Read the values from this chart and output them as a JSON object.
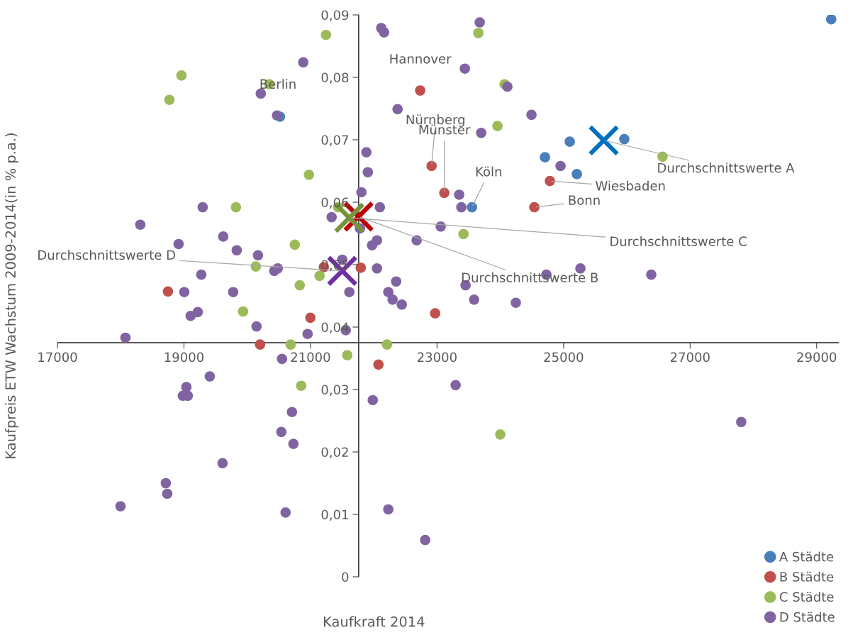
{
  "chart_data": {
    "type": "scatter",
    "xlabel": "Kaufkraft 2014",
    "ylabel": "Kaufpreis ETW Wachstum 2009-2014(in % p.a.)",
    "xlim": [
      17000,
      29350
    ],
    "ylim": [
      0,
      0.09
    ],
    "xticks": [
      17000,
      19000,
      21000,
      23000,
      25000,
      27000,
      29000
    ],
    "yticks": [
      {
        "value": 0,
        "label": "0"
      },
      {
        "value": 0.01,
        "label": "0,01"
      },
      {
        "value": 0.02,
        "label": "0,02"
      },
      {
        "value": 0.03,
        "label": "0,03"
      },
      {
        "value": 0.04,
        "label": "0,04"
      },
      {
        "value": 0.05,
        "label": "0,05"
      },
      {
        "value": 0.06,
        "label": "0,06"
      },
      {
        "value": 0.07,
        "label": "0,07"
      },
      {
        "value": 0.08,
        "label": "0,08"
      },
      {
        "value": 0.09,
        "label": "0,09"
      }
    ],
    "ref_lines": [
      {
        "axis": "x",
        "value": 21760,
        "color": "#404040"
      },
      {
        "axis": "y",
        "value": 0.0375,
        "color": "#404040"
      }
    ],
    "grid": false,
    "legend": "bottom right",
    "marker": "circle",
    "series": [
      {
        "name": "A Städte",
        "color": "#4a7ebb",
        "x": [
          29230,
          20517,
          25098,
          25960,
          24706,
          25210,
          23552
        ],
        "values": [
          0.0893,
          0.0737,
          0.0697,
          0.0701,
          0.0672,
          0.0645,
          0.0592
        ]
      },
      {
        "name": "B Städte",
        "color": "#c0504d",
        "x": [
          22734,
          22914,
          23115,
          24784,
          24538,
          21794,
          21211,
          18747,
          20998,
          22970,
          20203,
          22074
        ],
        "values": [
          0.0779,
          0.0658,
          0.0615,
          0.0634,
          0.0592,
          0.0495,
          0.0496,
          0.0457,
          0.0415,
          0.0422,
          0.0372,
          0.034
        ]
      },
      {
        "name": "C Städte",
        "color": "#9bbb59",
        "x": [
          21245,
          23653,
          18960,
          18770,
          20349,
          24067,
          23955,
          26565,
          20976,
          19822,
          21435,
          23418,
          20752,
          20136,
          21144,
          20830,
          19934,
          20685,
          22208,
          21581,
          20853,
          24000
        ],
        "values": [
          0.0868,
          0.0871,
          0.0803,
          0.0764,
          0.0789,
          0.0789,
          0.0722,
          0.0673,
          0.0644,
          0.0592,
          0.0592,
          0.0549,
          0.0532,
          0.0497,
          0.0482,
          0.0467,
          0.0425,
          0.0372,
          0.0372,
          0.0355,
          0.0306,
          0.0228
        ]
      },
      {
        "name": "D Städte",
        "color": "#8064a2",
        "x": [
          23675,
          22118,
          22163,
          20886,
          23440,
          20214,
          24112,
          20472,
          22376,
          24493,
          23698,
          21883,
          21906,
          21805,
          24952,
          23350,
          23384,
          22096,
          21782,
          21334,
          23058,
          21973,
          22051,
          22678,
          21502,
          22051,
          22354,
          21614,
          22230,
          23451,
          24728,
          25266,
          26386,
          22298,
          22443,
          23586,
          24246,
          21558,
          21984,
          23294,
          22230,
          22813,
          27808,
          19296,
          18310,
          18915,
          19621,
          19834,
          20170,
          20483,
          20427,
          19274,
          19005,
          19778,
          20147,
          19218,
          19106,
          20954,
          18075,
          20550,
          19408,
          19038,
          18982,
          19061,
          20707,
          20539,
          20730,
          19610,
          18714,
          18736,
          17997,
          20606
        ],
        "values": [
          0.0888,
          0.0879,
          0.0872,
          0.0824,
          0.0814,
          0.0774,
          0.0785,
          0.0739,
          0.0749,
          0.074,
          0.0711,
          0.068,
          0.0648,
          0.0616,
          0.0658,
          0.0612,
          0.0592,
          0.0592,
          0.0558,
          0.0576,
          0.0561,
          0.0531,
          0.0539,
          0.0539,
          0.0508,
          0.0494,
          0.0473,
          0.0456,
          0.0456,
          0.0467,
          0.0484,
          0.0494,
          0.0484,
          0.0444,
          0.0436,
          0.0444,
          0.0439,
          0.0395,
          0.0283,
          0.0307,
          0.0108,
          0.0059,
          0.0248,
          0.0592,
          0.0564,
          0.0533,
          0.0545,
          0.0523,
          0.0515,
          0.0494,
          0.049,
          0.0484,
          0.0456,
          0.0456,
          0.0401,
          0.0424,
          0.0418,
          0.0389,
          0.0383,
          0.0349,
          0.0321,
          0.0304,
          0.029,
          0.029,
          0.0264,
          0.0232,
          0.0213,
          0.0182,
          0.015,
          0.0133,
          0.0113,
          0.0103
        ]
      },
      {
        "color": "#0070c0",
        "marker": "cross",
        "x": [
          25635
        ],
        "values": [
          0.0699
        ]
      },
      {
        "color": "#c00000",
        "marker": "cross",
        "x": [
          21760
        ],
        "values": [
          0.0577
        ]
      },
      {
        "color": "#77933c",
        "marker": "cross",
        "x": [
          21614
        ],
        "values": [
          0.0575
        ]
      },
      {
        "color": "#7030a0",
        "marker": "cross",
        "x": [
          21502
        ],
        "values": [
          0.049
        ]
      }
    ],
    "annotations": [
      {
        "text": "Hannover",
        "x": 22734,
        "y": 0.0779
      },
      {
        "text": "Berlin",
        "x": 20517,
        "y": 0.0737
      },
      {
        "text": "Nürnberg",
        "x": 22914,
        "y": 0.0658
      },
      {
        "text": "Münster",
        "x": 23115,
        "y": 0.0615
      },
      {
        "text": "Köln",
        "x": 23552,
        "y": 0.0592
      },
      {
        "text": "Wiesbaden",
        "x": 24784,
        "y": 0.0634
      },
      {
        "text": "Bonn",
        "x": 24538,
        "y": 0.0592
      },
      {
        "text": "Durchschnittswerte A",
        "x": 25635,
        "y": 0.0699
      },
      {
        "text": "Durchschnittswerte B",
        "x": 21760,
        "y": 0.0577
      },
      {
        "text": "Durchschnittswerte C",
        "x": 21614,
        "y": 0.0575
      },
      {
        "text": "Durchschnittswerte D",
        "x": 21502,
        "y": 0.049
      }
    ]
  }
}
